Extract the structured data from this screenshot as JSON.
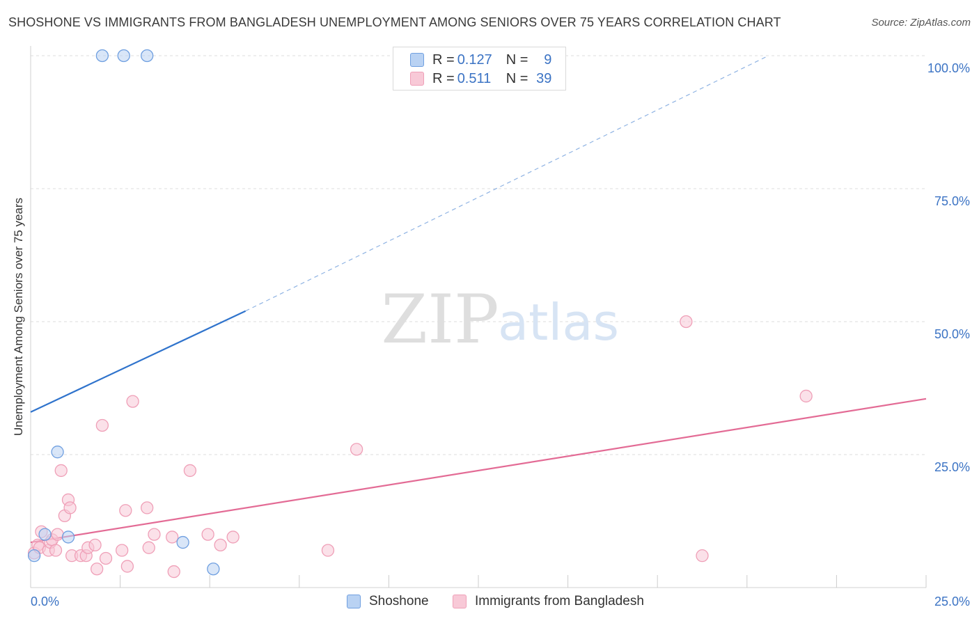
{
  "chart_data": {
    "type": "scatter",
    "title": "SHOSHONE VS IMMIGRANTS FROM BANGLADESH UNEMPLOYMENT AMONG SENIORS OVER 75 YEARS CORRELATION CHART",
    "source": "Source: ZipAtlas.com",
    "xlabel": "",
    "ylabel": "Unemployment Among Seniors over 75 years",
    "xlim": [
      0,
      25
    ],
    "ylim": [
      0,
      100
    ],
    "x_tick_labels": [
      "0.0%",
      "25.0%"
    ],
    "y_tick_labels": [
      "100.0%",
      "75.0%",
      "50.0%",
      "25.0%"
    ],
    "grid": true,
    "watermark": "ZIPatlas",
    "legend": {
      "entries": [
        {
          "r_label": "R =",
          "r_value": "0.127",
          "n_label": "N =",
          "n_value": "9"
        },
        {
          "r_label": "R =",
          "r_value": "0.511",
          "n_label": "N =",
          "n_value": "39"
        }
      ]
    },
    "series": [
      {
        "name": "Shoshone",
        "color": "#6f9fe0",
        "fill": "#b9d2f3",
        "line_color": "#2f73cc",
        "trend": {
          "x0": 0,
          "y0": 33,
          "x1": 6,
          "y1": 52,
          "dash_to_x": 20.6,
          "dash_to_y": 100
        },
        "points": [
          [
            2.0,
            100
          ],
          [
            2.6,
            100
          ],
          [
            3.25,
            100
          ],
          [
            0.75,
            25.5
          ],
          [
            0.4,
            10
          ],
          [
            1.05,
            9.5
          ],
          [
            4.25,
            8.5
          ],
          [
            5.1,
            3.5
          ],
          [
            0.1,
            6
          ]
        ]
      },
      {
        "name": "Immigrants from Bangladesh",
        "color": "#ef9fb7",
        "fill": "#f8c9d7",
        "line_color": "#e36b95",
        "trend": {
          "x0": 0,
          "y0": 8.5,
          "x1": 25,
          "y1": 35.5
        },
        "points": [
          [
            0.1,
            6.5
          ],
          [
            0.2,
            8
          ],
          [
            0.25,
            7.5
          ],
          [
            0.3,
            10.5
          ],
          [
            0.5,
            7
          ],
          [
            0.55,
            8.5
          ],
          [
            0.6,
            9
          ],
          [
            0.7,
            7
          ],
          [
            0.75,
            10
          ],
          [
            0.85,
            22
          ],
          [
            0.95,
            13.5
          ],
          [
            1.05,
            16.5
          ],
          [
            1.1,
            15
          ],
          [
            1.15,
            6
          ],
          [
            1.4,
            6
          ],
          [
            1.55,
            6
          ],
          [
            1.6,
            7.5
          ],
          [
            1.8,
            8
          ],
          [
            1.85,
            3.5
          ],
          [
            2.0,
            30.5
          ],
          [
            2.1,
            5.5
          ],
          [
            2.55,
            7
          ],
          [
            2.65,
            14.5
          ],
          [
            2.7,
            4
          ],
          [
            2.85,
            35
          ],
          [
            3.25,
            15
          ],
          [
            3.3,
            7.5
          ],
          [
            3.45,
            10
          ],
          [
            3.95,
            9.5
          ],
          [
            4.0,
            3
          ],
          [
            4.45,
            22
          ],
          [
            4.95,
            10
          ],
          [
            5.3,
            8
          ],
          [
            5.65,
            9.5
          ],
          [
            8.3,
            7
          ],
          [
            9.1,
            26
          ],
          [
            18.3,
            50
          ],
          [
            18.75,
            6
          ],
          [
            21.65,
            36
          ]
        ]
      }
    ]
  }
}
